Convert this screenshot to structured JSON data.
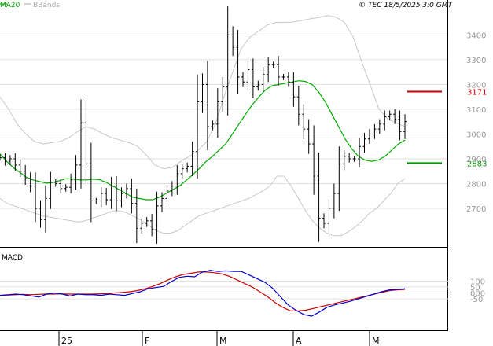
{
  "header": {
    "legend_ma": "MA20",
    "legend_bb": "BBands",
    "copyright": "© TEC 18/5/2025 3:0 GMT"
  },
  "colors": {
    "price_bar": "#000000",
    "ma20": "#00aa00",
    "bbands": "#c8c8c8",
    "resistance": "#cc0000",
    "support": "#009900",
    "macd_line": "#0000cc",
    "signal_line": "#cc0000",
    "grid": "#e0e0e0",
    "frame": "#000000"
  },
  "chart_data": [
    {
      "type": "line",
      "title": "",
      "series": [
        {
          "name": "MA20",
          "values": [
            2920,
            2890,
            2865,
            2845,
            2825,
            2815,
            2808,
            2802,
            2805,
            2812,
            2820,
            2818,
            2815,
            2815,
            2818,
            2816,
            2805,
            2790,
            2775,
            2760,
            2745,
            2740,
            2735,
            2735,
            2745,
            2760,
            2775,
            2790,
            2812,
            2835,
            2860,
            2888,
            2910,
            2935,
            2960,
            3000,
            3040,
            3080,
            3118,
            3150,
            3178,
            3195,
            3200,
            3205,
            3210,
            3215,
            3212,
            3200,
            3170,
            3130,
            3080,
            3030,
            2980,
            2940,
            2910,
            2895,
            2890,
            2895,
            2910,
            2935,
            2960,
            2975
          ]
        },
        {
          "name": "BBands upper",
          "values": [
            3150,
            3100,
            3040,
            3000,
            2970,
            2960,
            2965,
            2970,
            2985,
            3010,
            3030,
            3020,
            3000,
            2985,
            2975,
            2965,
            2950,
            2915,
            2875,
            2860,
            2865,
            2890,
            2910,
            2935,
            2970,
            3040,
            3150,
            3250,
            3345,
            3390,
            3415,
            3440,
            3450,
            3450,
            3452,
            3458,
            3465,
            3470,
            3478,
            3472,
            3450,
            3390,
            3290,
            3195,
            3100,
            3060,
            3045,
            3030
          ]
        },
        {
          "name": "BBands lower",
          "values": [
            2740,
            2720,
            2710,
            2700,
            2690,
            2680,
            2670,
            2665,
            2660,
            2655,
            2650,
            2645,
            2650,
            2660,
            2670,
            2680,
            2690,
            2690,
            2680,
            2665,
            2650,
            2630,
            2610,
            2600,
            2600,
            2610,
            2630,
            2650,
            2670,
            2680,
            2690,
            2700,
            2710,
            2720,
            2730,
            2740,
            2755,
            2770,
            2790,
            2830,
            2830,
            2790,
            2740,
            2690,
            2650,
            2620,
            2600,
            2590,
            2590,
            2605,
            2625,
            2650,
            2680,
            2700,
            2730,
            2760,
            2800,
            2820
          ]
        },
        {
          "name": "Price",
          "values": [
            2905,
            2890,
            2900,
            2875,
            2850,
            2820,
            2790,
            2700,
            2655,
            2740,
            2805,
            2800,
            2780,
            2785,
            2815,
            2875,
            3045,
            2880,
            2730,
            2730,
            2760,
            2735,
            2790,
            2730,
            2760,
            2780,
            2720,
            2620,
            2640,
            2650,
            2615,
            2710,
            2740,
            2770,
            2790,
            2840,
            2860,
            2870,
            2930,
            3130,
            3200,
            3030,
            3040,
            3130,
            3190,
            3400,
            3350,
            3230,
            3210,
            3260,
            3190,
            3200,
            3240,
            3280,
            3280,
            3230,
            3230,
            3210,
            3150,
            3080,
            3020,
            2960,
            2830,
            2660,
            2640,
            2700,
            2760,
            2880,
            2910,
            2900,
            2900,
            2950,
            2980,
            3000,
            3020,
            3040,
            3070,
            3080,
            3060,
            3010,
            3050
          ]
        }
      ],
      "ylim": [
        2570,
        3490
      ],
      "yticks": [
        "3400",
        "3300",
        "3200",
        "3100",
        "3000",
        "2900",
        "2800",
        "2700"
      ],
      "xticks": [
        "25",
        "F",
        "M",
        "A",
        "M"
      ],
      "annotations": [
        {
          "label": "3171",
          "value": 3171,
          "color": "#cc0000"
        },
        {
          "label": "2883",
          "value": 2883,
          "color": "#009900"
        }
      ],
      "grid": true
    },
    {
      "type": "line",
      "title": "MACD",
      "series": [
        {
          "name": "MACD",
          "values": [
            -20,
            -15,
            -10,
            -15,
            -25,
            -35,
            -10,
            0,
            -10,
            -25,
            -10,
            -15,
            -15,
            -20,
            -10,
            -15,
            -20,
            -5,
            10,
            35,
            45,
            55,
            95,
            130,
            140,
            135,
            175,
            190,
            180,
            185,
            180,
            180,
            150,
            120,
            90,
            40,
            -30,
            -100,
            -145,
            -180,
            -195,
            -160,
            -120,
            -100,
            -85,
            -70,
            -50,
            -30,
            -10,
            10,
            25,
            30,
            35
          ]
        },
        {
          "name": "Signal",
          "values": [
            -20,
            -18,
            -15,
            -12,
            -15,
            -12,
            -10,
            -10,
            -8,
            -10,
            -10,
            -10,
            -10,
            -8,
            -5,
            0,
            5,
            10,
            20,
            35,
            55,
            80,
            110,
            135,
            155,
            165,
            175,
            175,
            170,
            160,
            140,
            110,
            80,
            50,
            10,
            -30,
            -80,
            -120,
            -150,
            -150,
            -145,
            -130,
            -115,
            -100,
            -85,
            -70,
            -55,
            -40,
            -25,
            -10,
            5,
            20,
            25,
            30
          ]
        }
      ],
      "yticks": [
        "100",
        "50",
        "000",
        "-50"
      ],
      "ylim": [
        -260,
        280
      ],
      "grid": true
    }
  ]
}
